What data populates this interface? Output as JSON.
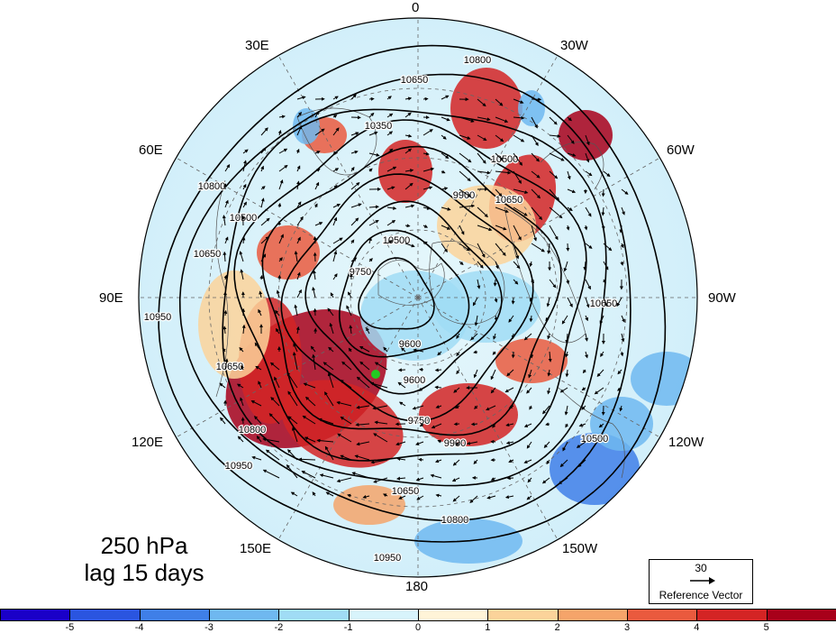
{
  "title": {
    "line1": "250 hPa",
    "line2": "lag 15 days"
  },
  "longitude_labels": [
    {
      "id": "lon-0",
      "text": "0"
    },
    {
      "id": "lon-30w",
      "text": "30W"
    },
    {
      "id": "lon-60w",
      "text": "60W"
    },
    {
      "id": "lon-90w",
      "text": "90W"
    },
    {
      "id": "lon-120w",
      "text": "120W"
    },
    {
      "id": "lon-150w",
      "text": "150W"
    },
    {
      "id": "lon-180",
      "text": "180"
    },
    {
      "id": "lon-150e",
      "text": "150E"
    },
    {
      "id": "lon-120e",
      "text": "120E"
    },
    {
      "id": "lon-90e",
      "text": "90E"
    },
    {
      "id": "lon-60e",
      "text": "60E"
    },
    {
      "id": "lon-30e",
      "text": "30E"
    }
  ],
  "contour_labels": [
    "10800",
    "10650",
    "10350",
    "10500",
    "9900",
    "10650",
    "10500",
    "9750",
    "9600",
    "9600",
    "9750",
    "9900",
    "10500",
    "10650",
    "10800",
    "10950",
    "10650",
    "10800",
    "10950",
    "10650",
    "10800",
    "10950",
    "10500",
    "10650"
  ],
  "reference_vector": {
    "value": "30",
    "label": "Reference Vector"
  },
  "colorbar": {
    "colors": [
      "#1a00c8",
      "#2a55e0",
      "#3f7fe8",
      "#6fb8f0",
      "#a0dcf5",
      "#d8f4fb",
      "#fff4d8",
      "#fbd39a",
      "#f5a46a",
      "#ea5a3e",
      "#d42424",
      "#a8001a"
    ],
    "ticks": [
      "-5",
      "-4",
      "-3",
      "-2",
      "-1",
      "0",
      "1",
      "2",
      "3",
      "4",
      "5"
    ]
  },
  "marker": {
    "color": "#22cc22"
  }
}
